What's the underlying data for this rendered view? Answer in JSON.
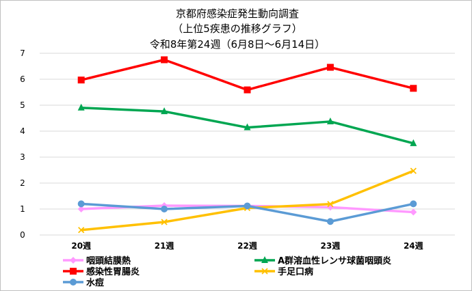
{
  "chart_data": {
    "type": "line",
    "title": [
      "京都府感染症発生動向調査",
      "（上位5疾患の推移グラフ）",
      "令和8年第24週（6月8日～6月14日）"
    ],
    "categories": [
      "20週",
      "21週",
      "22週",
      "23週",
      "24週"
    ],
    "ylim": [
      0,
      7
    ],
    "yticks": [
      0,
      1,
      2,
      3,
      4,
      5,
      6,
      7
    ],
    "grid": true,
    "legend_position": "bottom",
    "series": [
      {
        "name": "咽頭結膜熱",
        "color": "#ff99ff",
        "marker": "diamond",
        "values": [
          1.0,
          1.13,
          1.12,
          1.07,
          0.88
        ]
      },
      {
        "name": "A群溶血性レンサ球菌咽頭炎",
        "color": "#00a651",
        "marker": "triangle",
        "values": [
          4.9,
          4.76,
          4.14,
          4.37,
          3.53
        ]
      },
      {
        "name": "感染性胃腸炎",
        "color": "#ff0000",
        "marker": "square",
        "values": [
          5.97,
          6.75,
          5.59,
          6.46,
          5.65
        ]
      },
      {
        "name": "手足口病",
        "color": "#ffc000",
        "marker": "x",
        "values": [
          0.19,
          0.5,
          1.04,
          1.19,
          2.47
        ]
      },
      {
        "name": "水痘",
        "color": "#5b9bd5",
        "marker": "circle",
        "values": [
          1.2,
          1.0,
          1.12,
          0.52,
          1.2
        ]
      }
    ]
  }
}
